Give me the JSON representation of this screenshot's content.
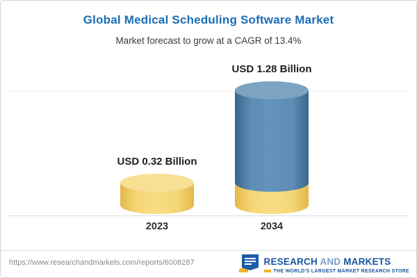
{
  "header": {
    "title": "Global Medical Scheduling Software Market",
    "subtitle": "Market forecast to grow at a CAGR of 13.4%"
  },
  "chart_data": {
    "type": "bar",
    "variant": "3d-cylinder",
    "title": "Global Medical Scheduling Software Market",
    "subtitle": "Market forecast to grow at a CAGR of 13.4%",
    "categories": [
      "2023",
      "2034"
    ],
    "values": [
      0.32,
      1.28
    ],
    "value_labels": [
      "USD 0.32 Billion",
      "USD 1.28 Billion"
    ],
    "unit": "USD Billion",
    "cagr_percent": 13.4,
    "ylim": [
      0,
      1.28
    ],
    "grid": "baseline-and-top-line",
    "legend": "none",
    "colors": {
      "bar_2023": "#f2cd63",
      "bar_2034_body": "#4e7fa8",
      "bar_2034_base": "#f2cd63",
      "title_blue": "#1a6db6"
    }
  },
  "footer": {
    "url": "https://www.researchandmarkets.com/reports/6008287",
    "brand": {
      "word1": "RESEARCH",
      "word2": "AND",
      "word3": "MARKETS"
    },
    "tagline": "THE WORLD'S LARGEST MARKET RESEARCH STORE"
  }
}
